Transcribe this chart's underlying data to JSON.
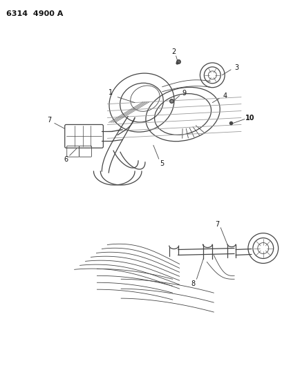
{
  "background_color": "#ffffff",
  "line_color": "#444444",
  "label_color": "#111111",
  "fig_width": 4.08,
  "fig_height": 5.33,
  "dpi": 100,
  "header_text": "6314  4900 A"
}
